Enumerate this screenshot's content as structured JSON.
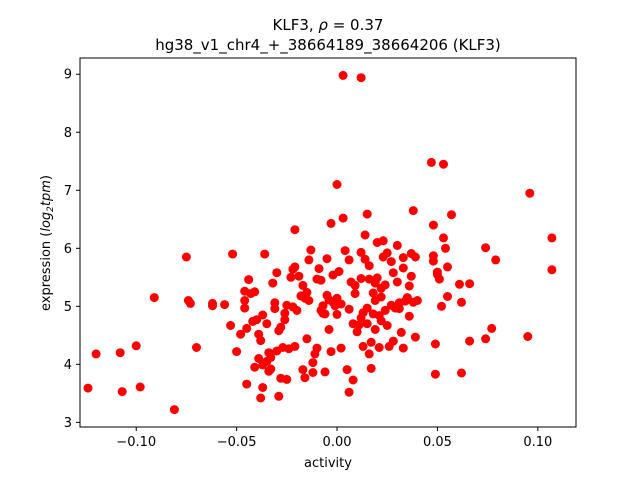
{
  "chart_data": {
    "type": "scatter",
    "title_line1_prefix": "KLF3, ",
    "title_line1_rho": "ρ",
    "title_line1_suffix": " = 0.37",
    "title_line2": "hg38_v1_chr4_+_38664189_38664206 (KLF3)",
    "xlabel": "activity",
    "ylabel_prefix": "expression (",
    "ylabel_log": "log",
    "ylabel_sub": "2",
    "ylabel_tpm": "tpm",
    "ylabel_suffix": ")",
    "xlim": [
      -0.128,
      0.119
    ],
    "ylim": [
      2.92,
      9.28
    ],
    "xticks": [
      {
        "value": -0.1,
        "label": "−0.10"
      },
      {
        "value": -0.05,
        "label": "−0.05"
      },
      {
        "value": 0.0,
        "label": "0.00"
      },
      {
        "value": 0.05,
        "label": "0.05"
      },
      {
        "value": 0.1,
        "label": "0.10"
      }
    ],
    "yticks": [
      {
        "value": 3,
        "label": "3"
      },
      {
        "value": 4,
        "label": "4"
      },
      {
        "value": 5,
        "label": "5"
      },
      {
        "value": 6,
        "label": "6"
      },
      {
        "value": 7,
        "label": "7"
      },
      {
        "value": 8,
        "label": "8"
      },
      {
        "value": 9,
        "label": "9"
      }
    ],
    "grid": false,
    "marker_color": "#ff0000",
    "points": [
      [
        0.003,
        8.98
      ],
      [
        0.012,
        8.94
      ],
      [
        -0.124,
        3.59
      ],
      [
        -0.12,
        4.18
      ],
      [
        -0.108,
        4.2
      ],
      [
        -0.107,
        3.53
      ],
      [
        -0.1,
        4.32
      ],
      [
        -0.098,
        3.61
      ],
      [
        -0.091,
        5.15
      ],
      [
        -0.081,
        3.22
      ],
      [
        -0.075,
        5.85
      ],
      [
        -0.074,
        5.1
      ],
      [
        -0.073,
        5.05
      ],
      [
        -0.07,
        4.29
      ],
      [
        -0.062,
        5.05
      ],
      [
        -0.062,
        5.01
      ],
      [
        -0.056,
        5.03
      ],
      [
        -0.053,
        4.67
      ],
      [
        -0.052,
        5.9
      ],
      [
        -0.05,
        4.22
      ],
      [
        -0.048,
        4.52
      ],
      [
        -0.046,
        5.1
      ],
      [
        -0.046,
        4.97
      ],
      [
        -0.046,
        5.26
      ],
      [
        -0.045,
        3.66
      ],
      [
        -0.045,
        4.62
      ],
      [
        -0.044,
        5.46
      ],
      [
        -0.043,
        5.22
      ],
      [
        -0.042,
        4.74
      ],
      [
        -0.041,
        5.25
      ],
      [
        -0.041,
        3.95
      ],
      [
        -0.04,
        4.77
      ],
      [
        -0.039,
        4.52
      ],
      [
        -0.039,
        4.1
      ],
      [
        -0.038,
        4.41
      ],
      [
        -0.038,
        3.42
      ],
      [
        -0.037,
        3.6
      ],
      [
        -0.037,
        4.85
      ],
      [
        -0.037,
        3.99
      ],
      [
        -0.036,
        5.9
      ],
      [
        -0.035,
        4.05
      ],
      [
        -0.035,
        4.7
      ],
      [
        -0.034,
        3.88
      ],
      [
        -0.034,
        4.2
      ],
      [
        -0.033,
        3.92
      ],
      [
        -0.033,
        4.12
      ],
      [
        -0.032,
        5.4
      ],
      [
        -0.031,
        4.96
      ],
      [
        -0.031,
        5.06
      ],
      [
        -0.03,
        4.23
      ],
      [
        -0.03,
        5.58
      ],
      [
        -0.029,
        3.45
      ],
      [
        -0.029,
        4.58
      ],
      [
        -0.028,
        3.76
      ],
      [
        -0.028,
        4.64
      ],
      [
        -0.027,
        4.29
      ],
      [
        -0.026,
        4.77
      ],
      [
        -0.026,
        4.88
      ],
      [
        -0.025,
        3.74
      ],
      [
        -0.025,
        5.02
      ],
      [
        -0.024,
        4.27
      ],
      [
        -0.023,
        5.5
      ],
      [
        -0.022,
        5.64
      ],
      [
        -0.022,
        4.99
      ],
      [
        -0.021,
        5.68
      ],
      [
        -0.021,
        6.32
      ],
      [
        -0.021,
        4.31
      ],
      [
        -0.02,
        4.93
      ],
      [
        -0.019,
        5.52
      ],
      [
        -0.018,
        5.18
      ],
      [
        -0.017,
        5.36
      ],
      [
        -0.017,
        3.91
      ],
      [
        -0.016,
        5.14
      ],
      [
        -0.016,
        3.77
      ],
      [
        -0.015,
        5.24
      ],
      [
        -0.015,
        4.44
      ],
      [
        -0.014,
        5.1
      ],
      [
        -0.014,
        5.8
      ],
      [
        -0.013,
        5.97
      ],
      [
        -0.012,
        3.86
      ],
      [
        -0.012,
        4.03
      ],
      [
        -0.011,
        4.18
      ],
      [
        -0.01,
        5.47
      ],
      [
        -0.01,
        4.28
      ],
      [
        -0.009,
        5.65
      ],
      [
        -0.008,
        4.93
      ],
      [
        -0.008,
        5.45
      ],
      [
        -0.007,
        4.88
      ],
      [
        -0.007,
        5.01
      ],
      [
        -0.006,
        3.87
      ],
      [
        -0.006,
        4.87
      ],
      [
        -0.005,
        5.19
      ],
      [
        -0.005,
        5.82
      ],
      [
        -0.004,
        4.6
      ],
      [
        -0.004,
        5.11
      ],
      [
        -0.003,
        6.43
      ],
      [
        -0.003,
        4.22
      ],
      [
        -0.002,
        5.07
      ],
      [
        -0.002,
        5.54
      ],
      [
        -0.001,
        5.01
      ],
      [
        0.0,
        5.14
      ],
      [
        0.0,
        7.1
      ],
      [
        0.0,
        4.86
      ],
      [
        0.001,
        5.6
      ],
      [
        0.002,
        4.28
      ],
      [
        0.002,
        5.04
      ],
      [
        0.003,
        6.52
      ],
      [
        0.004,
        5.96
      ],
      [
        0.005,
        3.91
      ],
      [
        0.006,
        4.95
      ],
      [
        0.006,
        5.8
      ],
      [
        0.006,
        3.52
      ],
      [
        0.007,
        5.42
      ],
      [
        0.008,
        3.73
      ],
      [
        0.008,
        4.7
      ],
      [
        0.009,
        5.22
      ],
      [
        0.009,
        5.36
      ],
      [
        0.01,
        4.56
      ],
      [
        0.011,
        4.68
      ],
      [
        0.012,
        5.48
      ],
      [
        0.012,
        4.8
      ],
      [
        0.012,
        5.93
      ],
      [
        0.013,
        4.89
      ],
      [
        0.013,
        4.31
      ],
      [
        0.014,
        6.23
      ],
      [
        0.014,
        5.81
      ],
      [
        0.015,
        4.97
      ],
      [
        0.015,
        6.59
      ],
      [
        0.015,
        4.7
      ],
      [
        0.016,
        5.7
      ],
      [
        0.016,
        4.18
      ],
      [
        0.016,
        5.47
      ],
      [
        0.017,
        4.38
      ],
      [
        0.017,
        3.93
      ],
      [
        0.018,
        5.23
      ],
      [
        0.018,
        4.87
      ],
      [
        0.019,
        5.1
      ],
      [
        0.019,
        5.4
      ],
      [
        0.019,
        4.6
      ],
      [
        0.02,
        5.49
      ],
      [
        0.02,
        6.1
      ],
      [
        0.021,
        4.84
      ],
      [
        0.021,
        4.29
      ],
      [
        0.022,
        5.31
      ],
      [
        0.022,
        4.75
      ],
      [
        0.022,
        5.16
      ],
      [
        0.023,
        6.13
      ],
      [
        0.023,
        5.85
      ],
      [
        0.024,
        5.37
      ],
      [
        0.024,
        4.93
      ],
      [
        0.025,
        4.67
      ],
      [
        0.025,
        5.92
      ],
      [
        0.026,
        4.31
      ],
      [
        0.027,
        5.77
      ],
      [
        0.027,
        5.02
      ],
      [
        0.028,
        5.58
      ],
      [
        0.028,
        4.4
      ],
      [
        0.029,
        4.97
      ],
      [
        0.03,
        6.05
      ],
      [
        0.03,
        5.42
      ],
      [
        0.031,
        5.06
      ],
      [
        0.031,
        4.96
      ],
      [
        0.032,
        4.55
      ],
      [
        0.033,
        4.28
      ],
      [
        0.033,
        5.66
      ],
      [
        0.033,
        5.84
      ],
      [
        0.034,
        5.09
      ],
      [
        0.035,
        5.15
      ],
      [
        0.036,
        4.83
      ],
      [
        0.036,
        5.35
      ],
      [
        0.037,
        5.52
      ],
      [
        0.037,
        5.91
      ],
      [
        0.038,
        6.65
      ],
      [
        0.038,
        5.07
      ],
      [
        0.039,
        4.47
      ],
      [
        0.039,
        5.85
      ],
      [
        0.04,
        5.1
      ],
      [
        0.047,
        7.48
      ],
      [
        0.048,
        5.87
      ],
      [
        0.048,
        6.4
      ],
      [
        0.048,
        5.78
      ],
      [
        0.049,
        4.35
      ],
      [
        0.049,
        3.83
      ],
      [
        0.05,
        5.59
      ],
      [
        0.05,
        5.55
      ],
      [
        0.051,
        5.47
      ],
      [
        0.052,
        5.0
      ],
      [
        0.053,
        7.45
      ],
      [
        0.053,
        6.18
      ],
      [
        0.054,
        6.0
      ],
      [
        0.055,
        5.68
      ],
      [
        0.055,
        5.17
      ],
      [
        0.057,
        6.58
      ],
      [
        0.061,
        5.38
      ],
      [
        0.062,
        5.07
      ],
      [
        0.062,
        3.85
      ],
      [
        0.066,
        4.4
      ],
      [
        0.066,
        5.39
      ],
      [
        0.074,
        4.44
      ],
      [
        0.074,
        6.01
      ],
      [
        0.077,
        4.62
      ],
      [
        0.079,
        5.8
      ],
      [
        0.095,
        4.48
      ],
      [
        0.096,
        6.95
      ],
      [
        0.107,
        6.18
      ],
      [
        0.107,
        5.63
      ]
    ]
  }
}
